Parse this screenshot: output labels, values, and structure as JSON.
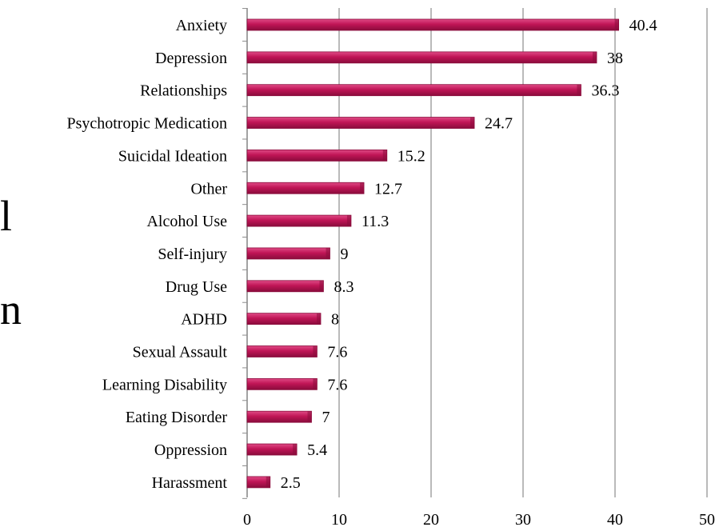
{
  "side_glyphs": {
    "top": "l",
    "bottom": "n"
  },
  "colors": {
    "bar": "#c01556",
    "bar_light": "#e04b86",
    "bar_dark": "#8a0c3c",
    "grid": "#8c8c8c",
    "text": "#000000"
  },
  "chart_data": {
    "type": "bar",
    "orientation": "horizontal",
    "title": "",
    "xlabel": "",
    "ylabel": "",
    "categories": [
      "Anxiety",
      "Depression",
      "Relationships",
      "Psychotropic Medication",
      "Suicidal Ideation",
      "Other",
      "Alcohol Use",
      "Self-injury",
      "Drug Use",
      "ADHD",
      "Sexual Assault",
      "Learning Disability",
      "Eating Disorder",
      "Oppression",
      "Harassment"
    ],
    "values": [
      40.4,
      38,
      36.3,
      24.7,
      15.2,
      12.7,
      11.3,
      9,
      8.3,
      8,
      7.6,
      7.6,
      7,
      5.4,
      2.5
    ],
    "value_labels": [
      "40.4",
      "38",
      "36.3",
      "24.7",
      "15.2",
      "12.7",
      "11.3",
      "9",
      "8.3",
      "8",
      "7.6",
      "7.6",
      "7",
      "5.4",
      "2.5"
    ],
    "xlim": [
      0,
      50
    ],
    "xticks": [
      0,
      10,
      20,
      30,
      40,
      50
    ],
    "xtick_labels": [
      "0",
      "10",
      "20",
      "30",
      "40",
      "50"
    ],
    "grid": true,
    "legend": "none"
  }
}
